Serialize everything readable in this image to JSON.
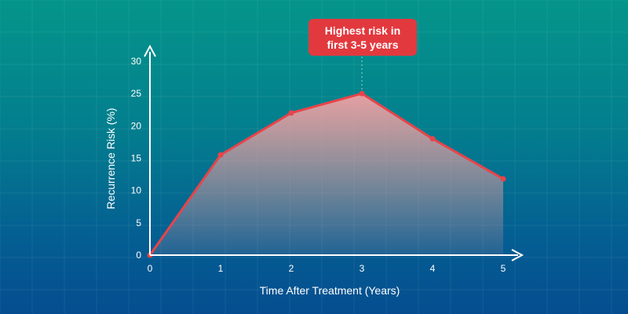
{
  "colors": {
    "line": "#e8444a",
    "area_top": "#f2a0a2",
    "axis": "#ffffff",
    "callout": "#e2393f",
    "bg_top": "#04958a",
    "bg_bottom": "#054d90"
  },
  "callout": {
    "line1": "Highest risk in",
    "line2": "first 3-5 years"
  },
  "chart_data": {
    "type": "area",
    "title": "",
    "xlabel": "Time After Treatment (Years)",
    "ylabel": "Recurrence Risk (%)",
    "x": [
      0,
      1,
      2,
      3,
      4,
      5
    ],
    "y": [
      0,
      15.5,
      22,
      25,
      18,
      11.8
    ],
    "xticks": [
      "0",
      "1",
      "2",
      "3",
      "4",
      "5"
    ],
    "yticks": [
      "0",
      "5",
      "10",
      "15",
      "20",
      "25",
      "30"
    ],
    "xlim": [
      0,
      5
    ],
    "ylim": [
      0,
      30
    ],
    "grid": true,
    "annotation_x": 3
  }
}
